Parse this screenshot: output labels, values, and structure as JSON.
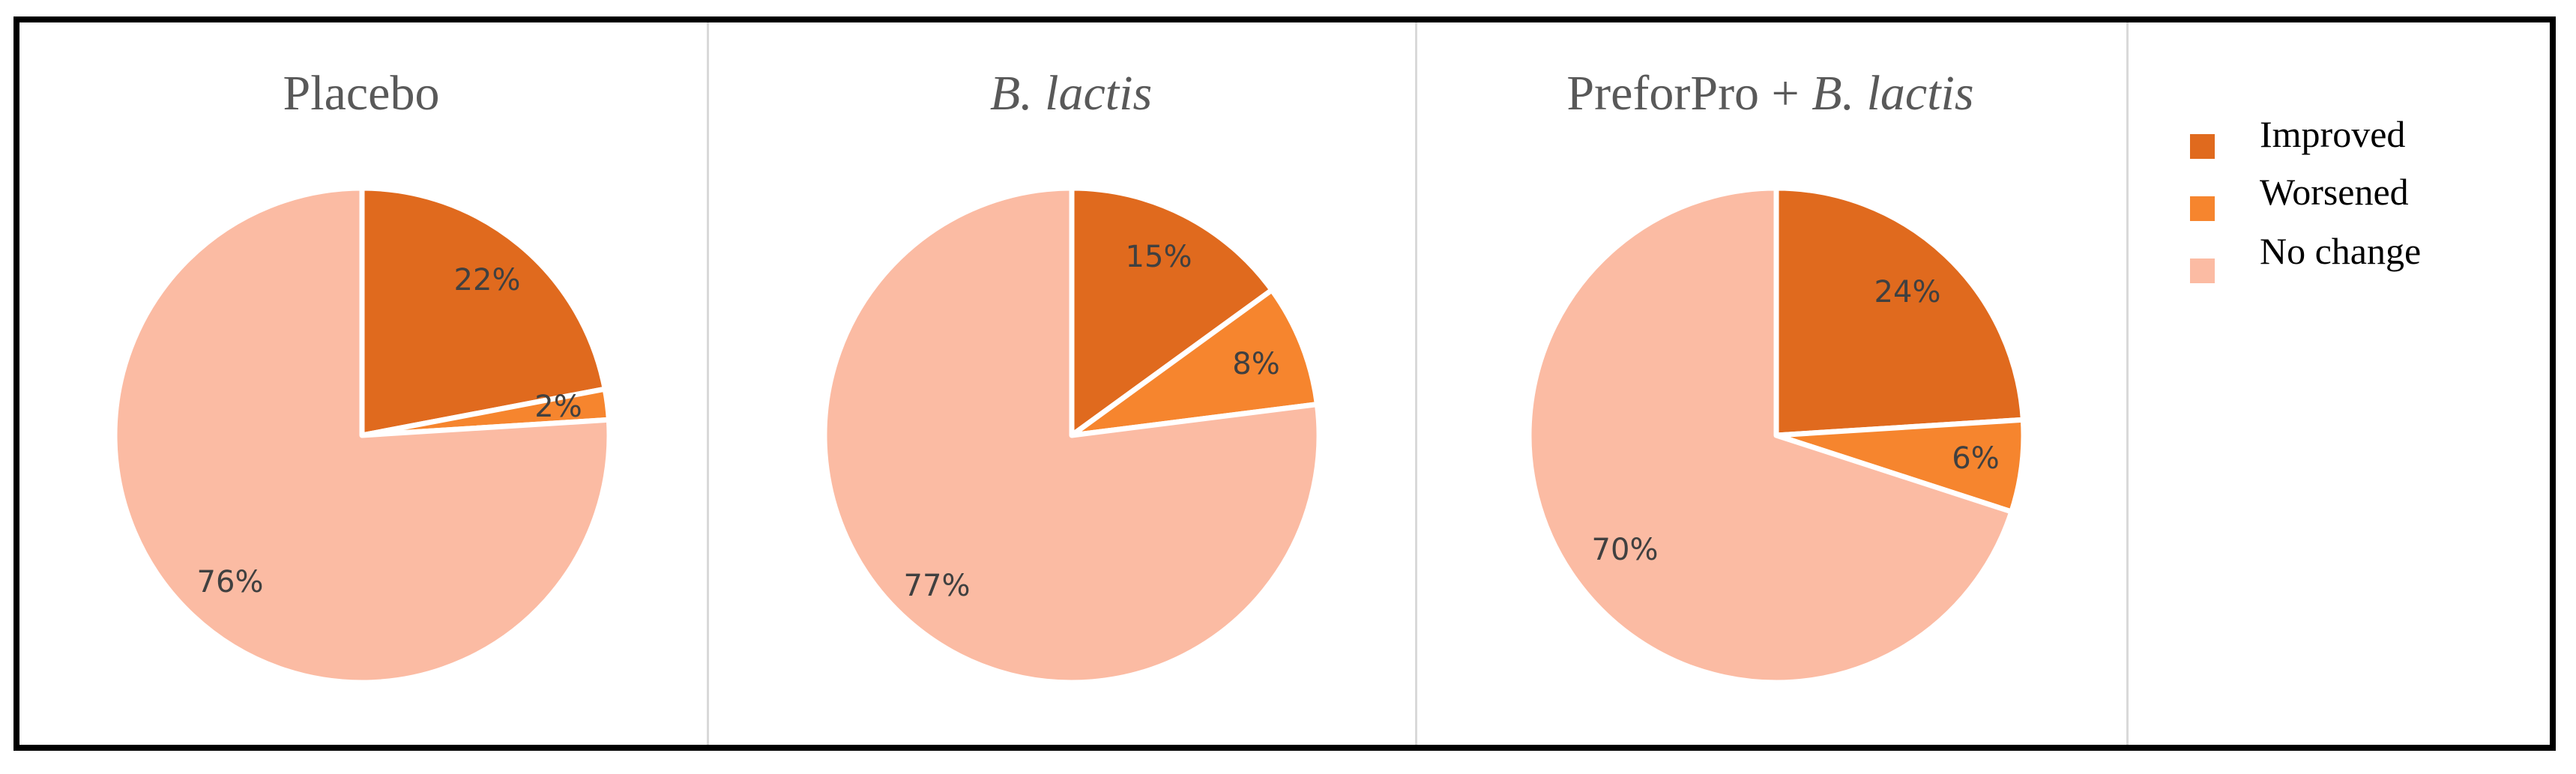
{
  "chart_data": [
    {
      "type": "pie",
      "title": "Placebo",
      "title_italic": "",
      "categories": [
        "Improved",
        "Worsened",
        "No change"
      ],
      "values": [
        22,
        2,
        76
      ],
      "labels": [
        "22%",
        "2%",
        "76%"
      ]
    },
    {
      "type": "pie",
      "title": "",
      "title_italic": "B. lactis",
      "categories": [
        "Improved",
        "Worsened",
        "No change"
      ],
      "values": [
        15,
        8,
        77
      ],
      "labels": [
        "15%",
        "8%",
        "77%"
      ]
    },
    {
      "type": "pie",
      "title": "PreforPro + ",
      "title_italic": "B. lactis",
      "categories": [
        "Improved",
        "Worsened",
        "No change"
      ],
      "values": [
        24,
        6,
        70
      ],
      "labels": [
        "24%",
        "6%",
        "70%"
      ]
    }
  ],
  "legend": {
    "placement": "right",
    "items": [
      {
        "label": "Improved",
        "color": "#E06A1E"
      },
      {
        "label": "Worsened",
        "color": "#F6852E"
      },
      {
        "label": "No change",
        "color": "#FBBBA3"
      }
    ]
  },
  "colors": {
    "improved": "#E06A1E",
    "worsened": "#F6852E",
    "no_change": "#FBBBA3",
    "slice_border": "#FFFFFF"
  },
  "pie_start_angle": "12 o'clock",
  "pie_direction": "clockwise",
  "legend_markers": "squares"
}
